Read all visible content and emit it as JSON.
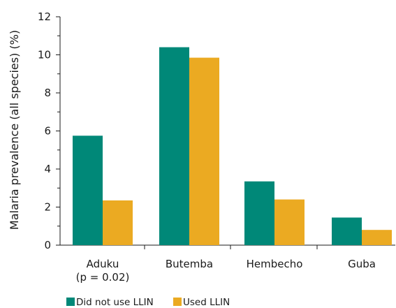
{
  "chart_data": {
    "type": "bar",
    "title": "",
    "xlabel": "",
    "ylabel": "Malaria prevalence (all species) (%)",
    "ylim": [
      0,
      12
    ],
    "yticks": [
      0,
      2,
      4,
      6,
      8,
      10,
      12
    ],
    "categories": [
      [
        "Aduku",
        "(p = 0.02)"
      ],
      [
        "Butemba"
      ],
      [
        "Hembecho"
      ],
      [
        "Guba"
      ]
    ],
    "series": [
      {
        "name": "Did not use LLIN",
        "color": "#008878",
        "values": [
          5.75,
          10.4,
          3.35,
          1.45
        ]
      },
      {
        "name": "Used LLIN",
        "color": "#EBAA22",
        "values": [
          2.35,
          9.85,
          2.4,
          0.8
        ]
      }
    ],
    "grid": false,
    "legend_position": "bottom-left"
  }
}
